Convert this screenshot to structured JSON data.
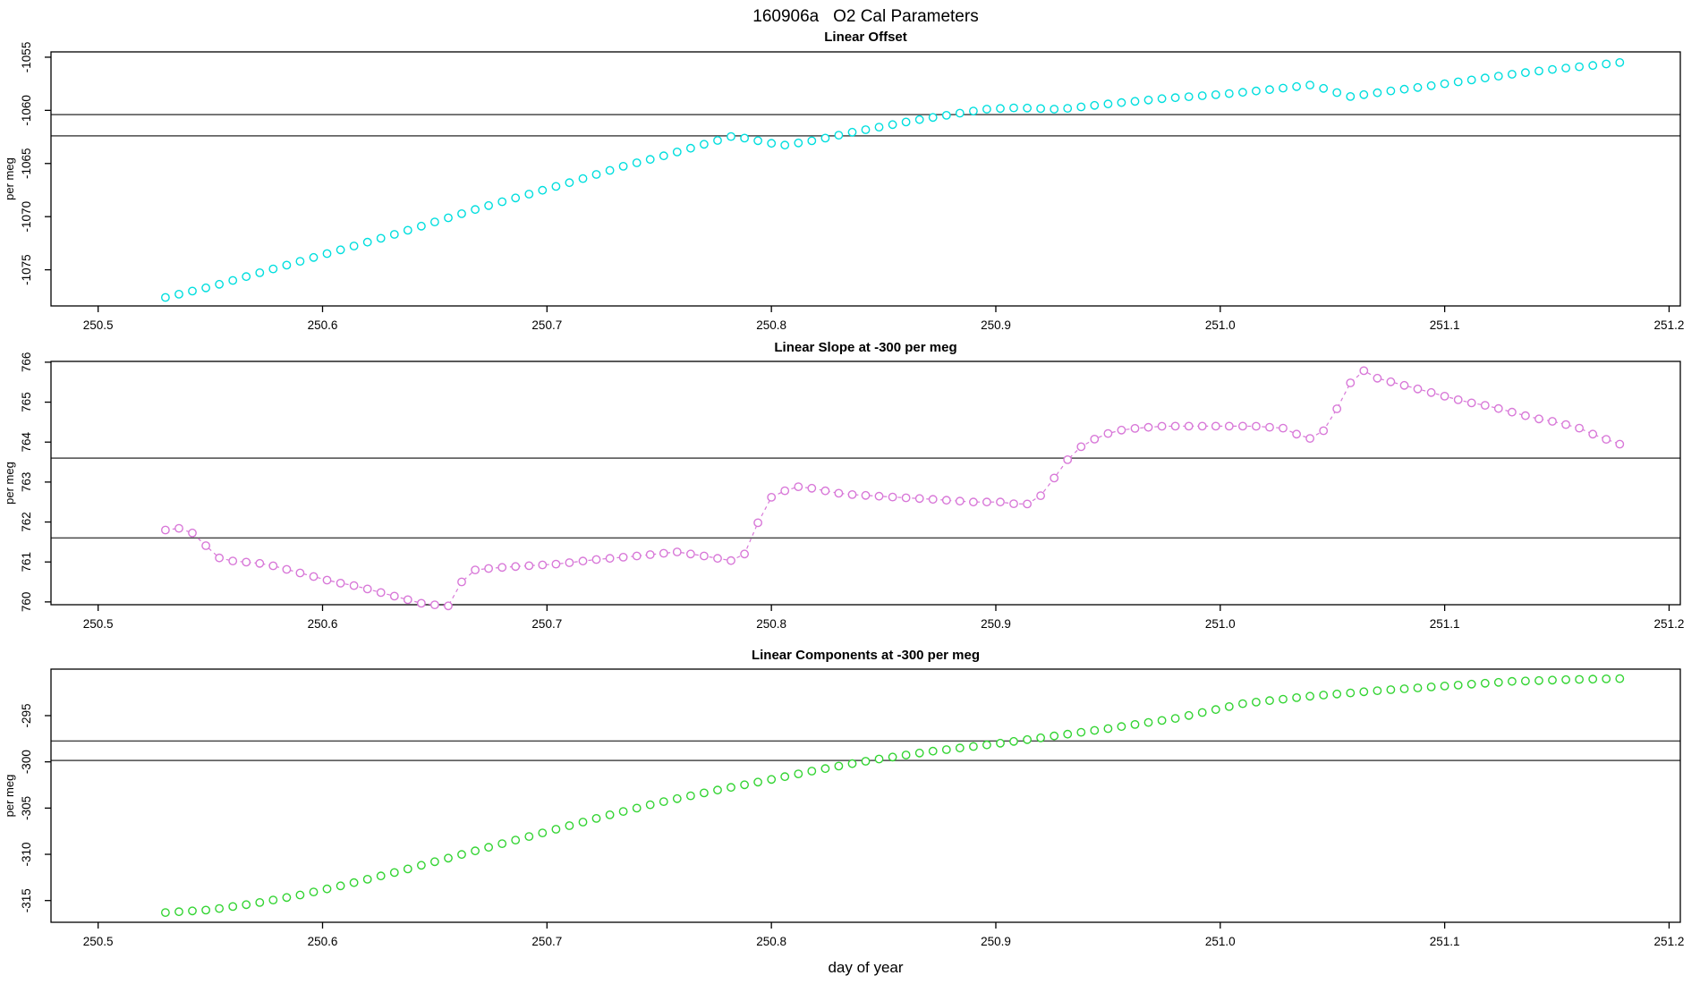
{
  "figure": {
    "title": "160906a   O2 Cal Parameters",
    "xlabel": "day of year"
  },
  "x_axis": {
    "lim": [
      250.479,
      251.205
    ],
    "ticks": [
      250.5,
      250.6,
      250.7,
      250.8,
      250.9,
      251.0,
      251.1,
      251.2
    ],
    "data_start": 250.53,
    "data_end": 251.178,
    "sample_step": 0.006
  },
  "colors": {
    "panel1_points": "#00DEDE",
    "panel2_points": "#D878D8",
    "panel3_points": "#33D433",
    "reference_line": "#4a4a4a",
    "axis": "#000000"
  },
  "chart_data": [
    {
      "type": "scatter",
      "title": "Linear Offset",
      "ylabel": "per meg",
      "ylim": [
        -1078.4,
        -1054.5
      ],
      "yticks": [
        -1075,
        -1070,
        -1065,
        -1060,
        -1055
      ],
      "hlines": [
        -1060.4,
        -1062.4
      ],
      "marker": "open-circle",
      "line": "none",
      "landmarks": [
        [
          250.53,
          -1077.6
        ],
        [
          250.55,
          -1076.6
        ],
        [
          250.57,
          -1075.4
        ],
        [
          250.59,
          -1074.2
        ],
        [
          250.61,
          -1073.0
        ],
        [
          250.63,
          -1071.8
        ],
        [
          250.65,
          -1070.5
        ],
        [
          250.67,
          -1069.2
        ],
        [
          250.69,
          -1068.0
        ],
        [
          250.71,
          -1066.8
        ],
        [
          250.735,
          -1065.2
        ],
        [
          250.75,
          -1064.4
        ],
        [
          250.765,
          -1063.5
        ],
        [
          250.783,
          -1062.4
        ],
        [
          250.795,
          -1062.9
        ],
        [
          250.805,
          -1063.3
        ],
        [
          250.82,
          -1062.8
        ],
        [
          250.835,
          -1062.1
        ],
        [
          250.85,
          -1061.5
        ],
        [
          250.865,
          -1060.9
        ],
        [
          250.88,
          -1060.4
        ],
        [
          250.895,
          -1059.9
        ],
        [
          250.91,
          -1059.75
        ],
        [
          250.928,
          -1059.9
        ],
        [
          250.95,
          -1059.4
        ],
        [
          250.974,
          -1058.9
        ],
        [
          251.0,
          -1058.5
        ],
        [
          251.02,
          -1058.1
        ],
        [
          251.041,
          -1057.6
        ],
        [
          251.05,
          -1058.2
        ],
        [
          251.058,
          -1058.7
        ],
        [
          251.075,
          -1058.2
        ],
        [
          251.09,
          -1057.8
        ],
        [
          251.11,
          -1057.2
        ],
        [
          251.13,
          -1056.6
        ],
        [
          251.15,
          -1056.1
        ],
        [
          251.165,
          -1055.8
        ],
        [
          251.178,
          -1055.5
        ]
      ]
    },
    {
      "type": "scatter",
      "title": "Linear Slope at -300 per meg",
      "ylabel": "per meg",
      "ylim": [
        759.93,
        766.02
      ],
      "yticks": [
        760,
        761,
        762,
        763,
        764,
        765,
        766
      ],
      "hlines": [
        763.6,
        761.6
      ],
      "marker": "open-circle",
      "line": "dashed",
      "landmarks": [
        [
          250.531,
          761.8
        ],
        [
          250.537,
          761.85
        ],
        [
          250.543,
          761.7
        ],
        [
          250.549,
          761.35
        ],
        [
          250.555,
          761.05
        ],
        [
          250.565,
          761.0
        ],
        [
          250.575,
          760.95
        ],
        [
          250.585,
          760.8
        ],
        [
          250.595,
          760.65
        ],
        [
          250.605,
          760.5
        ],
        [
          250.615,
          760.4
        ],
        [
          250.625,
          760.25
        ],
        [
          250.635,
          760.1
        ],
        [
          250.645,
          759.95
        ],
        [
          250.656,
          759.9
        ],
        [
          250.662,
          760.5
        ],
        [
          250.668,
          760.8
        ],
        [
          250.676,
          760.85
        ],
        [
          250.69,
          760.9
        ],
        [
          250.705,
          760.95
        ],
        [
          250.72,
          761.05
        ],
        [
          250.74,
          761.15
        ],
        [
          250.758,
          761.25
        ],
        [
          250.77,
          761.15
        ],
        [
          250.78,
          761.05
        ],
        [
          250.786,
          761.0
        ],
        [
          250.791,
          761.5
        ],
        [
          250.796,
          762.3
        ],
        [
          250.801,
          762.7
        ],
        [
          250.807,
          762.8
        ],
        [
          250.813,
          762.9
        ],
        [
          250.822,
          762.8
        ],
        [
          250.832,
          762.7
        ],
        [
          250.847,
          762.65
        ],
        [
          250.862,
          762.6
        ],
        [
          250.877,
          762.55
        ],
        [
          250.89,
          762.5
        ],
        [
          250.902,
          762.5
        ],
        [
          250.909,
          762.45
        ],
        [
          250.915,
          762.45
        ],
        [
          250.921,
          762.7
        ],
        [
          250.926,
          763.1
        ],
        [
          250.931,
          763.5
        ],
        [
          250.937,
          763.85
        ],
        [
          250.943,
          764.05
        ],
        [
          250.949,
          764.2
        ],
        [
          250.956,
          764.3
        ],
        [
          250.963,
          764.35
        ],
        [
          250.975,
          764.4
        ],
        [
          251.0,
          764.4
        ],
        [
          251.015,
          764.4
        ],
        [
          251.028,
          764.35
        ],
        [
          251.036,
          764.15
        ],
        [
          251.043,
          764.05
        ],
        [
          251.05,
          764.6
        ],
        [
          251.056,
          765.3
        ],
        [
          251.062,
          765.85
        ],
        [
          251.07,
          765.6
        ],
        [
          251.08,
          765.45
        ],
        [
          251.09,
          765.3
        ],
        [
          251.1,
          765.15
        ],
        [
          251.11,
          765.0
        ],
        [
          251.12,
          764.9
        ],
        [
          251.13,
          764.75
        ],
        [
          251.14,
          764.6
        ],
        [
          251.15,
          764.5
        ],
        [
          251.16,
          764.35
        ],
        [
          251.168,
          764.15
        ],
        [
          251.173,
          764.05
        ],
        [
          251.178,
          763.95
        ]
      ]
    },
    {
      "type": "scatter",
      "title": "Linear Components at -300 per meg",
      "ylabel": "per meg",
      "ylim": [
        -317.35,
        -289.97
      ],
      "yticks": [
        -315,
        -310,
        -305,
        -300,
        -295
      ],
      "hlines": [
        -297.75,
        -299.85
      ],
      "marker": "open-circle",
      "line": "none",
      "landmarks": [
        [
          250.53,
          -316.3
        ],
        [
          250.55,
          -316.0
        ],
        [
          250.57,
          -315.3
        ],
        [
          250.59,
          -314.4
        ],
        [
          250.61,
          -313.3
        ],
        [
          250.63,
          -312.1
        ],
        [
          250.65,
          -310.8
        ],
        [
          250.67,
          -309.5
        ],
        [
          250.69,
          -308.2
        ],
        [
          250.71,
          -306.9
        ],
        [
          250.73,
          -305.6
        ],
        [
          250.75,
          -304.4
        ],
        [
          250.775,
          -303.1
        ],
        [
          250.8,
          -301.9
        ],
        [
          250.82,
          -300.9
        ],
        [
          250.845,
          -299.8
        ],
        [
          250.87,
          -298.9
        ],
        [
          250.895,
          -298.2
        ],
        [
          250.92,
          -297.4
        ],
        [
          250.95,
          -296.4
        ],
        [
          250.98,
          -295.3
        ],
        [
          251.01,
          -293.7
        ],
        [
          251.04,
          -292.9
        ],
        [
          251.07,
          -292.3
        ],
        [
          251.1,
          -291.8
        ],
        [
          251.13,
          -291.3
        ],
        [
          251.155,
          -291.1
        ],
        [
          251.178,
          -291.0
        ]
      ]
    }
  ]
}
